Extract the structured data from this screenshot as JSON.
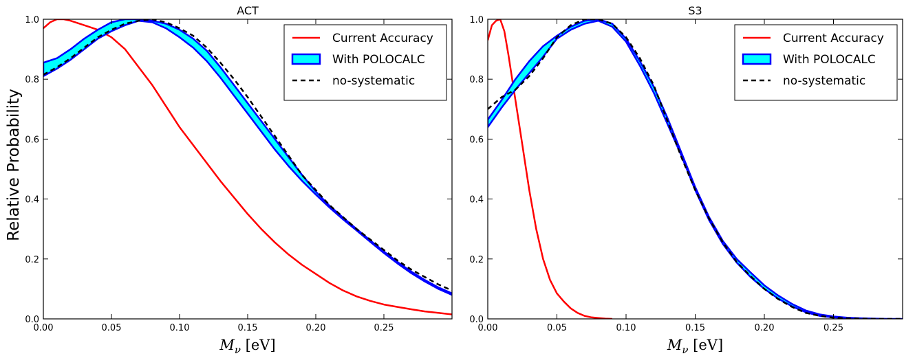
{
  "figure": {
    "ylabel": "Relative Probability"
  },
  "chart_data": [
    {
      "type": "line",
      "title": "ACT",
      "xlabel": "M_ν [eV]",
      "ylabel": "Relative Probability",
      "xlim": [
        0.0,
        0.3
      ],
      "ylim": [
        0.0,
        1.0
      ],
      "xticks": [
        "0.00",
        "0.05",
        "0.10",
        "0.15",
        "0.20",
        "0.25"
      ],
      "yticks": [
        "0.0",
        "0.2",
        "0.4",
        "0.6",
        "0.8",
        "1.0"
      ],
      "legend_position": "top-right",
      "series": [
        {
          "name": "Current Accuracy",
          "style": "solid-line",
          "color": "#ff0000",
          "x": [
            0.0,
            0.005,
            0.01,
            0.015,
            0.02,
            0.03,
            0.04,
            0.05,
            0.06,
            0.07,
            0.08,
            0.09,
            0.1,
            0.11,
            0.12,
            0.13,
            0.14,
            0.15,
            0.16,
            0.17,
            0.18,
            0.19,
            0.2,
            0.21,
            0.22,
            0.23,
            0.24,
            0.25,
            0.26,
            0.27,
            0.28,
            0.29,
            0.3
          ],
          "y": [
            0.97,
            0.99,
            1.0,
            1.0,
            0.995,
            0.98,
            0.965,
            0.94,
            0.9,
            0.84,
            0.78,
            0.71,
            0.64,
            0.58,
            0.52,
            0.46,
            0.405,
            0.35,
            0.3,
            0.255,
            0.215,
            0.18,
            0.15,
            0.12,
            0.095,
            0.075,
            0.06,
            0.048,
            0.04,
            0.032,
            0.025,
            0.02,
            0.015
          ]
        },
        {
          "name": "With POLOCALC",
          "style": "band",
          "color": "#00ffff",
          "edge_color": "#0000ff",
          "x": [
            0.0,
            0.01,
            0.02,
            0.03,
            0.04,
            0.05,
            0.06,
            0.07,
            0.08,
            0.09,
            0.1,
            0.11,
            0.12,
            0.13,
            0.14,
            0.15,
            0.16,
            0.17,
            0.18,
            0.19,
            0.2,
            0.21,
            0.22,
            0.23,
            0.24,
            0.25,
            0.26,
            0.27,
            0.28,
            0.29,
            0.3
          ],
          "upper": [
            0.855,
            0.87,
            0.9,
            0.935,
            0.965,
            0.99,
            1.0,
            1.0,
            0.995,
            0.985,
            0.965,
            0.935,
            0.895,
            0.84,
            0.78,
            0.72,
            0.66,
            0.6,
            0.54,
            0.48,
            0.425,
            0.378,
            0.338,
            0.3,
            0.262,
            0.225,
            0.19,
            0.158,
            0.13,
            0.105,
            0.085
          ],
          "lower": [
            0.81,
            0.835,
            0.865,
            0.9,
            0.935,
            0.96,
            0.98,
            0.995,
            0.99,
            0.97,
            0.94,
            0.905,
            0.86,
            0.805,
            0.745,
            0.685,
            0.625,
            0.565,
            0.51,
            0.46,
            0.415,
            0.372,
            0.332,
            0.295,
            0.257,
            0.22,
            0.185,
            0.153,
            0.125,
            0.1,
            0.08
          ]
        },
        {
          "name": "no-systematic",
          "style": "dashed-line",
          "color": "#000000",
          "x": [
            0.0,
            0.01,
            0.02,
            0.03,
            0.04,
            0.05,
            0.06,
            0.07,
            0.08,
            0.09,
            0.1,
            0.11,
            0.12,
            0.13,
            0.14,
            0.15,
            0.16,
            0.17,
            0.18,
            0.19,
            0.2,
            0.21,
            0.22,
            0.23,
            0.24,
            0.25,
            0.26,
            0.27,
            0.28,
            0.29,
            0.3
          ],
          "y": [
            0.815,
            0.84,
            0.87,
            0.905,
            0.94,
            0.965,
            0.985,
            0.995,
            1.0,
            0.99,
            0.97,
            0.945,
            0.905,
            0.855,
            0.8,
            0.74,
            0.675,
            0.61,
            0.545,
            0.48,
            0.43,
            0.38,
            0.34,
            0.3,
            0.265,
            0.23,
            0.195,
            0.165,
            0.14,
            0.115,
            0.095
          ]
        }
      ]
    },
    {
      "type": "line",
      "title": "S3",
      "xlabel": "M_ν [eV]",
      "ylabel": "",
      "xlim": [
        0.0,
        0.3
      ],
      "ylim": [
        0.0,
        1.0
      ],
      "xticks": [
        "0.00",
        "0.05",
        "0.10",
        "0.15",
        "0.20",
        "0.25"
      ],
      "yticks": [
        "0.0",
        "0.2",
        "0.4",
        "0.6",
        "0.8",
        "1.0"
      ],
      "legend_position": "top-right",
      "series": [
        {
          "name": "Current Accuracy",
          "style": "solid-line",
          "color": "#ff0000",
          "x": [
            0.0,
            0.003,
            0.006,
            0.009,
            0.012,
            0.015,
            0.02,
            0.025,
            0.03,
            0.035,
            0.04,
            0.045,
            0.05,
            0.055,
            0.06,
            0.065,
            0.07,
            0.075,
            0.08,
            0.085,
            0.09
          ],
          "y": [
            0.93,
            0.98,
            0.995,
            1.0,
            0.96,
            0.88,
            0.73,
            0.58,
            0.43,
            0.3,
            0.2,
            0.13,
            0.085,
            0.058,
            0.035,
            0.02,
            0.01,
            0.005,
            0.003,
            0.001,
            0.0
          ]
        },
        {
          "name": "With POLOCALC",
          "style": "band",
          "color": "#00ffff",
          "edge_color": "#0000ff",
          "x": [
            0.0,
            0.01,
            0.02,
            0.03,
            0.04,
            0.05,
            0.06,
            0.07,
            0.08,
            0.09,
            0.1,
            0.11,
            0.12,
            0.13,
            0.14,
            0.15,
            0.16,
            0.17,
            0.18,
            0.19,
            0.2,
            0.21,
            0.22,
            0.23,
            0.24,
            0.25,
            0.26,
            0.27,
            0.28,
            0.29,
            0.3
          ],
          "upper": [
            0.665,
            0.73,
            0.8,
            0.86,
            0.91,
            0.945,
            0.975,
            0.995,
            1.0,
            0.985,
            0.935,
            0.86,
            0.775,
            0.67,
            0.555,
            0.44,
            0.34,
            0.26,
            0.2,
            0.155,
            0.112,
            0.078,
            0.05,
            0.028,
            0.015,
            0.008,
            0.004,
            0.002,
            0.001,
            0.0,
            0.0
          ],
          "lower": [
            0.64,
            0.705,
            0.765,
            0.82,
            0.875,
            0.935,
            0.965,
            0.985,
            0.995,
            0.975,
            0.925,
            0.845,
            0.755,
            0.65,
            0.545,
            0.43,
            0.33,
            0.25,
            0.188,
            0.14,
            0.1,
            0.068,
            0.042,
            0.022,
            0.01,
            0.005,
            0.002,
            0.001,
            0.0,
            0.0,
            0.0
          ]
        },
        {
          "name": "no-systematic",
          "style": "dashed-line",
          "color": "#000000",
          "x": [
            0.0,
            0.01,
            0.02,
            0.03,
            0.04,
            0.05,
            0.06,
            0.07,
            0.08,
            0.09,
            0.1,
            0.11,
            0.12,
            0.13,
            0.14,
            0.15,
            0.16,
            0.17,
            0.18,
            0.19,
            0.2,
            0.21,
            0.22,
            0.23,
            0.24,
            0.25,
            0.26,
            0.27,
            0.28,
            0.29,
            0.3
          ],
          "y": [
            0.7,
            0.74,
            0.765,
            0.81,
            0.87,
            0.94,
            0.98,
            1.0,
            1.0,
            0.985,
            0.94,
            0.87,
            0.78,
            0.66,
            0.54,
            0.43,
            0.335,
            0.255,
            0.19,
            0.143,
            0.1,
            0.066,
            0.04,
            0.02,
            0.01,
            0.004,
            0.002,
            0.001,
            0.0,
            0.0,
            0.0
          ]
        }
      ]
    }
  ]
}
